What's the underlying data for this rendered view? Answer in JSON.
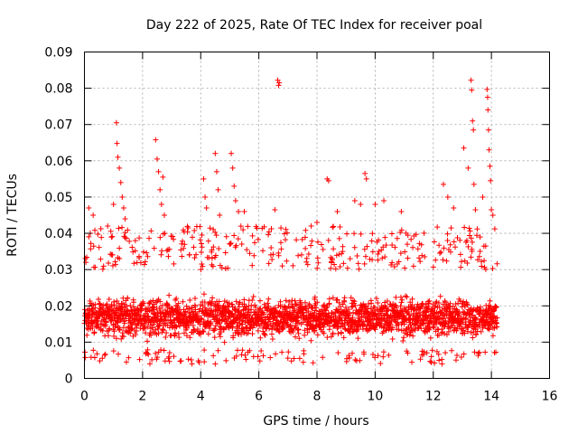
{
  "chart_data": {
    "type": "scatter",
    "title": "Day 222 of 2025, Rate Of TEC Index for receiver poal",
    "xlabel": "GPS time / hours",
    "ylabel": "ROTI / TECUs",
    "xlim": [
      0,
      16
    ],
    "ylim": [
      0,
      0.09
    ],
    "xticks": [
      0,
      2,
      4,
      6,
      8,
      10,
      12,
      14,
      16
    ],
    "yticks": [
      0,
      0.01,
      0.02,
      0.03,
      0.04,
      0.05,
      0.06,
      0.07,
      0.08,
      0.09
    ],
    "ytick_labels": [
      "0",
      "0.01",
      "0.02",
      "0.03",
      "0.04",
      "0.05",
      "0.06",
      "0.07",
      "0.08",
      "0.09"
    ],
    "grid": true,
    "marker": "+",
    "color": "#ff0000",
    "data_extent_hours": [
      0,
      14.2
    ],
    "baseline_band": [
      0.006,
      0.03
    ],
    "series": [
      {
        "name": "ROTI",
        "highlight_points": [
          {
            "x": 0.05,
            "y": 0.032
          },
          {
            "x": 0.15,
            "y": 0.047
          },
          {
            "x": 0.2,
            "y": 0.04
          },
          {
            "x": 0.3,
            "y": 0.045
          },
          {
            "x": 0.8,
            "y": 0.042
          },
          {
            "x": 1.0,
            "y": 0.048
          },
          {
            "x": 1.1,
            "y": 0.0705
          },
          {
            "x": 1.12,
            "y": 0.0648
          },
          {
            "x": 1.15,
            "y": 0.061
          },
          {
            "x": 1.2,
            "y": 0.058
          },
          {
            "x": 1.25,
            "y": 0.054
          },
          {
            "x": 1.3,
            "y": 0.05
          },
          {
            "x": 1.35,
            "y": 0.047
          },
          {
            "x": 1.4,
            "y": 0.044
          },
          {
            "x": 2.45,
            "y": 0.0658
          },
          {
            "x": 2.5,
            "y": 0.0605
          },
          {
            "x": 2.55,
            "y": 0.057
          },
          {
            "x": 2.6,
            "y": 0.052
          },
          {
            "x": 2.65,
            "y": 0.048
          },
          {
            "x": 2.7,
            "y": 0.0555
          },
          {
            "x": 2.75,
            "y": 0.045
          },
          {
            "x": 4.1,
            "y": 0.055
          },
          {
            "x": 4.15,
            "y": 0.05
          },
          {
            "x": 4.2,
            "y": 0.047
          },
          {
            "x": 4.5,
            "y": 0.062
          },
          {
            "x": 4.55,
            "y": 0.057
          },
          {
            "x": 4.6,
            "y": 0.052
          },
          {
            "x": 4.65,
            "y": 0.045
          },
          {
            "x": 5.05,
            "y": 0.062
          },
          {
            "x": 5.1,
            "y": 0.058
          },
          {
            "x": 5.15,
            "y": 0.053
          },
          {
            "x": 5.2,
            "y": 0.049
          },
          {
            "x": 5.3,
            "y": 0.046
          },
          {
            "x": 5.5,
            "y": 0.046
          },
          {
            "x": 6.55,
            "y": 0.0465
          },
          {
            "x": 6.65,
            "y": 0.0822
          },
          {
            "x": 6.68,
            "y": 0.0808
          },
          {
            "x": 6.7,
            "y": 0.0815
          },
          {
            "x": 8.35,
            "y": 0.055
          },
          {
            "x": 8.4,
            "y": 0.0545
          },
          {
            "x": 7.8,
            "y": 0.042
          },
          {
            "x": 8.0,
            "y": 0.043
          },
          {
            "x": 8.7,
            "y": 0.046
          },
          {
            "x": 9.3,
            "y": 0.049
          },
          {
            "x": 9.5,
            "y": 0.048
          },
          {
            "x": 9.65,
            "y": 0.0565
          },
          {
            "x": 9.7,
            "y": 0.055
          },
          {
            "x": 10.0,
            "y": 0.048
          },
          {
            "x": 10.3,
            "y": 0.049
          },
          {
            "x": 10.9,
            "y": 0.046
          },
          {
            "x": 12.35,
            "y": 0.0535
          },
          {
            "x": 12.5,
            "y": 0.05
          },
          {
            "x": 12.7,
            "y": 0.047
          },
          {
            "x": 13.05,
            "y": 0.0635
          },
          {
            "x": 13.2,
            "y": 0.058
          },
          {
            "x": 13.3,
            "y": 0.0822
          },
          {
            "x": 13.32,
            "y": 0.0795
          },
          {
            "x": 13.35,
            "y": 0.071
          },
          {
            "x": 13.38,
            "y": 0.0685
          },
          {
            "x": 13.4,
            "y": 0.0535
          },
          {
            "x": 13.45,
            "y": 0.0465
          },
          {
            "x": 13.7,
            "y": 0.05
          },
          {
            "x": 13.85,
            "y": 0.0797
          },
          {
            "x": 13.87,
            "y": 0.0775
          },
          {
            "x": 13.88,
            "y": 0.074
          },
          {
            "x": 13.9,
            "y": 0.0685
          },
          {
            "x": 13.92,
            "y": 0.063
          },
          {
            "x": 13.95,
            "y": 0.0585
          },
          {
            "x": 13.97,
            "y": 0.0545
          },
          {
            "x": 14.0,
            "y": 0.0465
          },
          {
            "x": 14.05,
            "y": 0.045
          },
          {
            "x": 4.5,
            "y": 0.004
          },
          {
            "x": 3.7,
            "y": 0.004
          },
          {
            "x": 12.3,
            "y": 0.004
          },
          {
            "x": 12.2,
            "y": 0.005
          }
        ]
      }
    ]
  }
}
